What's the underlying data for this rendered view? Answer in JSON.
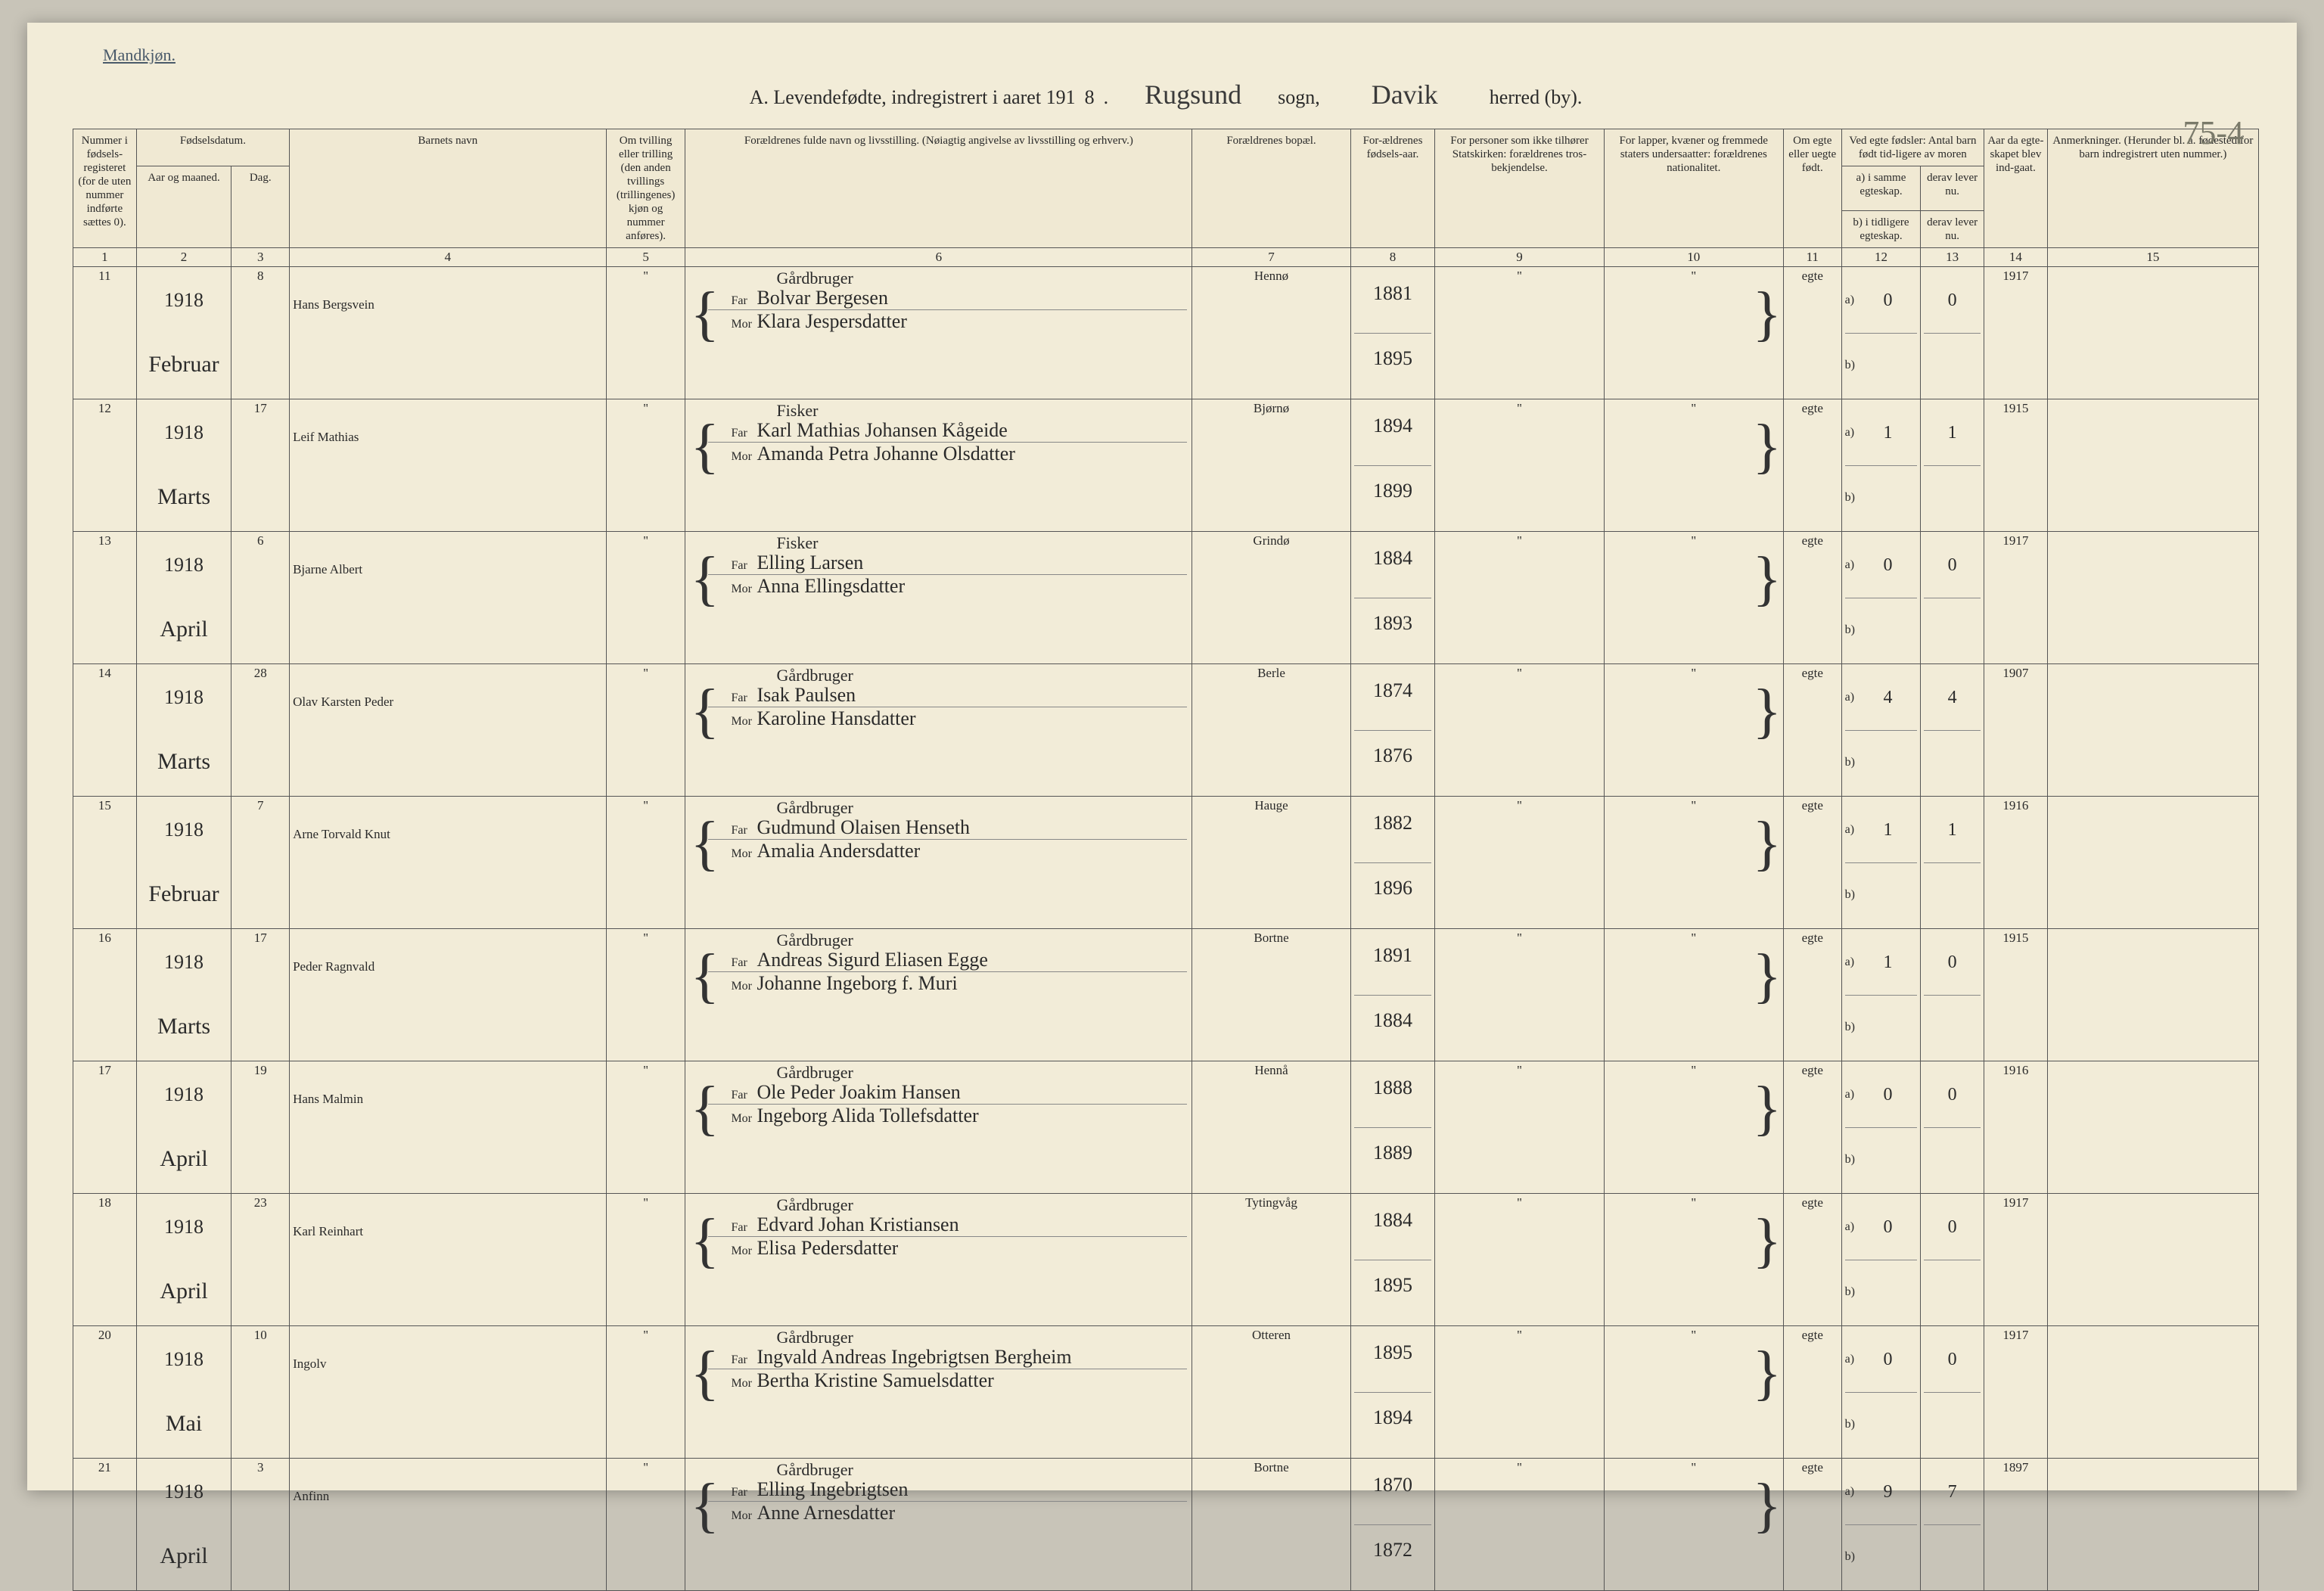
{
  "corner_label": "Mandkjøn.",
  "title": {
    "prefix": "A. Levendefødte, indregistrert i aaret 191",
    "year_suffix": "8",
    "dot": ".",
    "sogn_value": "Rugsund",
    "sogn_label": "sogn,",
    "herred_value": "Davik",
    "herred_label": "herred (by)."
  },
  "page_number": "75-4",
  "headers": {
    "h1": "Nummer i fødsels-registeret (for de uten nummer indførte sættes 0).",
    "h2": "Fødselsdatum.",
    "h2a": "Aar og maaned.",
    "h2b": "Dag.",
    "h4": "Barnets navn",
    "h5": "Om tvilling eller trilling (den anden tvillings (trillingenes) kjøn og nummer anføres).",
    "h6": "Forældrenes fulde navn og livsstilling. (Nøiagtig angivelse av livsstilling og erhverv.)",
    "h7": "Forældrenes bopæl.",
    "h8": "For-ældrenes fødsels-aar.",
    "h9": "For personer som ikke tilhører Statskirken: forældrenes tros-bekjendelse.",
    "h10": "For lapper, kvæner og fremmede staters undersaatter: forældrenes nationalitet.",
    "h11": "Om egte eller uegte født.",
    "h12": "Ved egte fødsler: Antal barn født tid-ligere av moren",
    "h12a": "a) i samme egteskap.",
    "h12b": "b) i tidligere egteskap.",
    "h13a": "derav lever nu.",
    "h13b": "derav lever nu.",
    "h14": "Aar da egte-skapet blev ind-gaat.",
    "h15": "Anmerkninger. (Herunder bl. a. fødested for barn indregistrert uten nummer.)",
    "colnums": [
      "1",
      "2",
      "3",
      "4",
      "5",
      "6",
      "7",
      "8",
      "9",
      "10",
      "11",
      "12",
      "13",
      "14",
      "15"
    ]
  },
  "far_label": "Far",
  "mor_label": "Mor",
  "rows": [
    {
      "num": "11",
      "year": "1918",
      "month": "Februar",
      "day": "8",
      "name": "Hans Bergsvein",
      "tvil": "\"",
      "occupation": "Gårdbruger",
      "far": "Bolvar Bergesen",
      "mor": "Klara Jespersdatter",
      "bopael": "Hennø",
      "fodaar_far": "1881",
      "fodaar_mor": "1895",
      "stats": "\"",
      "nat": "\"",
      "egte": "egte",
      "a12": "0",
      "a13": "0",
      "a14": "1917",
      "anm": ""
    },
    {
      "num": "12",
      "year": "1918",
      "month": "Marts",
      "day": "17",
      "name": "Leif Mathias",
      "tvil": "\"",
      "occupation": "Fisker",
      "far": "Karl Mathias Johansen Kågeide",
      "mor": "Amanda Petra Johanne Olsdatter",
      "bopael": "Bjørnø",
      "fodaar_far": "1894",
      "fodaar_mor": "1899",
      "stats": "\"",
      "nat": "\"",
      "egte": "egte",
      "a12": "1",
      "a13": "1",
      "a14": "1915",
      "anm": ""
    },
    {
      "num": "13",
      "year": "1918",
      "month": "April",
      "day": "6",
      "name": "Bjarne Albert",
      "tvil": "\"",
      "occupation": "Fisker",
      "far": "Elling Larsen",
      "mor": "Anna Ellingsdatter",
      "bopael": "Grindø",
      "fodaar_far": "1884",
      "fodaar_mor": "1893",
      "stats": "\"",
      "nat": "\"",
      "egte": "egte",
      "a12": "0",
      "a13": "0",
      "a14": "1917",
      "anm": ""
    },
    {
      "num": "14",
      "year": "1918",
      "month": "Marts",
      "day": "28",
      "name": "Olav Karsten Peder",
      "tvil": "\"",
      "occupation": "Gårdbruger",
      "far": "Isak Paulsen",
      "mor": "Karoline Hansdatter",
      "bopael": "Berle",
      "fodaar_far": "1874",
      "fodaar_mor": "1876",
      "stats": "\"",
      "nat": "\"",
      "egte": "egte",
      "a12": "4",
      "a13": "4",
      "a14": "1907",
      "anm": ""
    },
    {
      "num": "15",
      "year": "1918",
      "month": "Februar",
      "day": "7",
      "name": "Arne Torvald Knut",
      "tvil": "\"",
      "occupation": "Gårdbruger",
      "far": "Gudmund Olaisen Henseth",
      "mor": "Amalia Andersdatter",
      "bopael": "Hauge",
      "fodaar_far": "1882",
      "fodaar_mor": "1896",
      "stats": "\"",
      "nat": "\"",
      "egte": "egte",
      "a12": "1",
      "a13": "1",
      "a14": "1916",
      "anm": ""
    },
    {
      "num": "16",
      "year": "1918",
      "month": "Marts",
      "day": "17",
      "name": "Peder Ragnvald",
      "tvil": "\"",
      "occupation": "Gårdbruger",
      "far": "Andreas Sigurd Eliasen Egge",
      "mor": "Johanne Ingeborg f. Muri",
      "bopael": "Bortne",
      "fodaar_far": "1891",
      "fodaar_mor": "1884",
      "stats": "\"",
      "nat": "\"",
      "egte": "egte",
      "a12": "1",
      "a13": "0",
      "a14": "1915",
      "anm": ""
    },
    {
      "num": "17",
      "year": "1918",
      "month": "April",
      "day": "19",
      "name": "Hans Malmin",
      "tvil": "\"",
      "occupation": "Gårdbruger",
      "far": "Ole Peder Joakim Hansen",
      "mor": "Ingeborg Alida Tollefsdatter",
      "bopael": "Hennå",
      "fodaar_far": "1888",
      "fodaar_mor": "1889",
      "stats": "\"",
      "nat": "\"",
      "egte": "egte",
      "a12": "0",
      "a13": "0",
      "a14": "1916",
      "anm": ""
    },
    {
      "num": "18",
      "year": "1918",
      "month": "April",
      "day": "23",
      "name": "Karl Reinhart",
      "tvil": "\"",
      "occupation": "Gårdbruger",
      "far": "Edvard Johan Kristiansen",
      "mor": "Elisa Pedersdatter",
      "bopael": "Tytingvåg",
      "fodaar_far": "1884",
      "fodaar_mor": "1895",
      "stats": "\"",
      "nat": "\"",
      "egte": "egte",
      "a12": "0",
      "a13": "0",
      "a14": "1917",
      "anm": ""
    },
    {
      "num": "20",
      "year": "1918",
      "month": "Mai",
      "day": "10",
      "name": "Ingolv",
      "tvil": "\"",
      "occupation": "Gårdbruger",
      "far": "Ingvald Andreas Ingebrigtsen Bergheim",
      "mor": "Bertha Kristine Samuelsdatter",
      "bopael": "Otteren",
      "fodaar_far": "1895",
      "fodaar_mor": "1894",
      "stats": "\"",
      "nat": "\"",
      "egte": "egte",
      "a12": "0",
      "a13": "0",
      "a14": "1917",
      "anm": ""
    },
    {
      "num": "21",
      "year": "1918",
      "month": "April",
      "day": "3",
      "name": "Anfinn",
      "tvil": "\"",
      "occupation": "Gårdbruger",
      "far": "Elling Ingebrigtsen",
      "mor": "Anne Arnesdatter",
      "bopael": "Bortne",
      "fodaar_far": "1870",
      "fodaar_mor": "1872",
      "stats": "\"",
      "nat": "\"",
      "egte": "egte",
      "a12": "9",
      "a13": "7",
      "a14": "1897",
      "anm": ""
    }
  ]
}
